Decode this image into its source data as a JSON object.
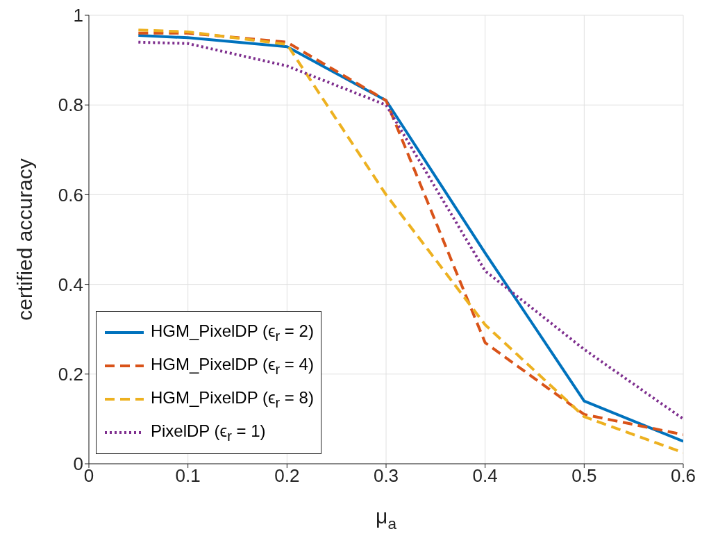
{
  "chart_data": {
    "type": "line",
    "xlabel": "μ$_{a}$",
    "ylabel": "certified accuracy",
    "x": [
      0.05,
      0.1,
      0.2,
      0.3,
      0.4,
      0.5,
      0.6
    ],
    "series": [
      {
        "name": "HGM_PixelDP (ϵ$_{r}$ = 2)",
        "color": "#0072bd",
        "line_style": "solid",
        "values": [
          0.955,
          0.95,
          0.93,
          0.81,
          0.47,
          0.14,
          0.05
        ]
      },
      {
        "name": "HGM_PixelDP (ϵ$_{r}$ = 4)",
        "color": "#d95319",
        "line_style": "dashed",
        "values": [
          0.96,
          0.96,
          0.94,
          0.81,
          0.27,
          0.11,
          0.065
        ]
      },
      {
        "name": "HGM_PixelDP (ϵ$_{r}$ = 8)",
        "color": "#edb120",
        "line_style": "dashed",
        "values": [
          0.967,
          0.963,
          0.935,
          0.6,
          0.31,
          0.105,
          0.025
        ]
      },
      {
        "name": "PixelDP (ϵ$_{r}$ = 1)",
        "color": "#7e2f8e",
        "line_style": "dotted",
        "values": [
          0.94,
          0.937,
          0.887,
          0.8,
          0.43,
          0.255,
          0.1
        ]
      }
    ],
    "xlim": [
      0,
      0.6
    ],
    "xticks": [
      0,
      0.1,
      0.2,
      0.3,
      0.4,
      0.5,
      0.6
    ],
    "ylim": [
      0,
      1
    ],
    "yticks": [
      0,
      0.2,
      0.4,
      0.6,
      0.8,
      1
    ],
    "grid": true,
    "legend": "bottom left",
    "marker": "none"
  }
}
